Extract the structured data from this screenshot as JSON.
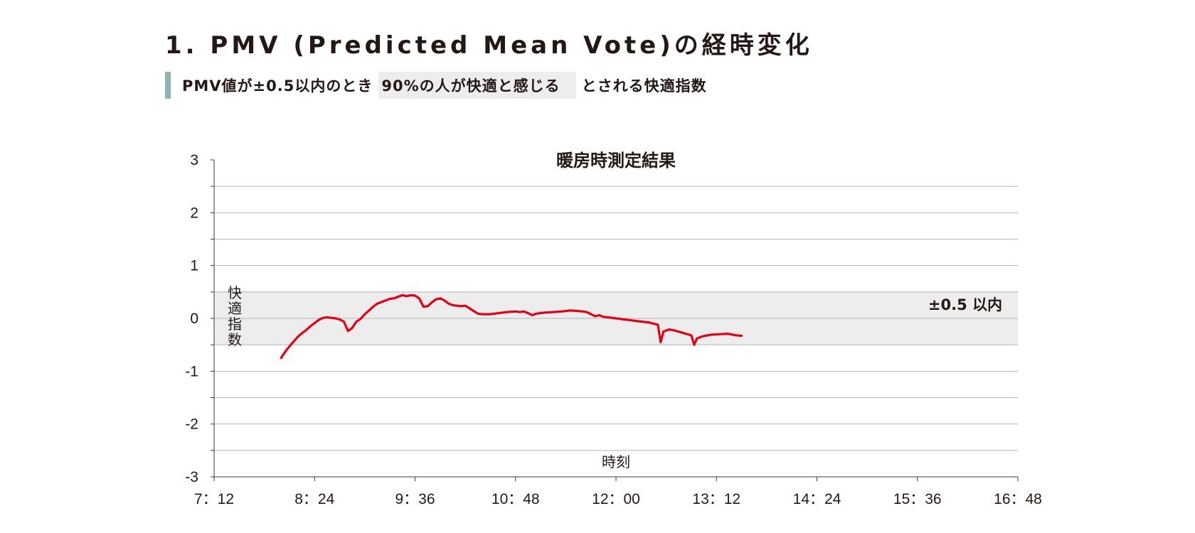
{
  "header": {
    "title": "1. PMV (Predicted Mean Vote)の経時変化",
    "subtitle_before": "PMV値が±0.5以内のとき",
    "subtitle_highlight": "90%の人が快適と感じる",
    "subtitle_after": "とされる快適指数",
    "accent_color": "#8fb5ad"
  },
  "chart_data": {
    "type": "line",
    "title": "暖房時測定結果",
    "xlabel": "時刻",
    "ylabel": "快適指数",
    "x_unit": "minutes since midnight",
    "xlim": [
      432,
      1008
    ],
    "ylim": [
      -3,
      3
    ],
    "x_ticks": [
      {
        "value": 432,
        "label": "7：12"
      },
      {
        "value": 504,
        "label": "8：24"
      },
      {
        "value": 576,
        "label": "9：36"
      },
      {
        "value": 648,
        "label": "10：48"
      },
      {
        "value": 720,
        "label": "12：00"
      },
      {
        "value": 792,
        "label": "13：12"
      },
      {
        "value": 864,
        "label": "14：24"
      },
      {
        "value": 936,
        "label": "15：36"
      },
      {
        "value": 1008,
        "label": "16：48"
      }
    ],
    "y_ticks": [
      3,
      2,
      1,
      0,
      -1,
      -2,
      -3
    ],
    "grid": true,
    "band": {
      "y_min": -0.5,
      "y_max": 0.5,
      "label": "±0.5 以内",
      "color": "#ededee"
    },
    "series": [
      {
        "color": "#e60012",
        "points": [
          [
            480,
            -0.75
          ],
          [
            483,
            -0.63
          ],
          [
            486,
            -0.53
          ],
          [
            489,
            -0.44
          ],
          [
            492,
            -0.35
          ],
          [
            495,
            -0.28
          ],
          [
            498,
            -0.22
          ],
          [
            501,
            -0.15
          ],
          [
            504,
            -0.09
          ],
          [
            507,
            -0.03
          ],
          [
            510,
            0.01
          ],
          [
            513,
            0.02
          ],
          [
            516,
            0.01
          ],
          [
            519,
            0.0
          ],
          [
            522,
            -0.02
          ],
          [
            525,
            -0.06
          ],
          [
            528,
            -0.24
          ],
          [
            531,
            -0.18
          ],
          [
            534,
            -0.06
          ],
          [
            537,
            -0.01
          ],
          [
            540,
            0.08
          ],
          [
            543,
            0.15
          ],
          [
            546,
            0.22
          ],
          [
            549,
            0.28
          ],
          [
            552,
            0.31
          ],
          [
            555,
            0.34
          ],
          [
            558,
            0.37
          ],
          [
            561,
            0.38
          ],
          [
            564,
            0.41
          ],
          [
            567,
            0.44
          ],
          [
            570,
            0.42
          ],
          [
            573,
            0.44
          ],
          [
            576,
            0.43
          ],
          [
            579,
            0.38
          ],
          [
            582,
            0.22
          ],
          [
            585,
            0.23
          ],
          [
            588,
            0.3
          ],
          [
            591,
            0.36
          ],
          [
            594,
            0.38
          ],
          [
            597,
            0.34
          ],
          [
            600,
            0.28
          ],
          [
            603,
            0.25
          ],
          [
            606,
            0.24
          ],
          [
            609,
            0.23
          ],
          [
            612,
            0.24
          ],
          [
            615,
            0.19
          ],
          [
            618,
            0.14
          ],
          [
            621,
            0.09
          ],
          [
            624,
            0.08
          ],
          [
            630,
            0.08
          ],
          [
            636,
            0.1
          ],
          [
            642,
            0.12
          ],
          [
            648,
            0.13
          ],
          [
            651,
            0.12
          ],
          [
            654,
            0.13
          ],
          [
            657,
            0.1
          ],
          [
            660,
            0.06
          ],
          [
            663,
            0.09
          ],
          [
            669,
            0.11
          ],
          [
            675,
            0.12
          ],
          [
            681,
            0.13
          ],
          [
            687,
            0.15
          ],
          [
            693,
            0.14
          ],
          [
            699,
            0.12
          ],
          [
            702,
            0.08
          ],
          [
            705,
            0.04
          ],
          [
            708,
            0.06
          ],
          [
            711,
            0.03
          ],
          [
            714,
            0.02
          ],
          [
            720,
            0.0
          ],
          [
            726,
            -0.02
          ],
          [
            732,
            -0.04
          ],
          [
            738,
            -0.06
          ],
          [
            744,
            -0.08
          ],
          [
            750,
            -0.12
          ],
          [
            752,
            -0.45
          ],
          [
            754,
            -0.25
          ],
          [
            758,
            -0.21
          ],
          [
            762,
            -0.23
          ],
          [
            766,
            -0.26
          ],
          [
            770,
            -0.29
          ],
          [
            774,
            -0.32
          ],
          [
            776,
            -0.5
          ],
          [
            778,
            -0.38
          ],
          [
            782,
            -0.34
          ],
          [
            788,
            -0.31
          ],
          [
            794,
            -0.3
          ],
          [
            800,
            -0.29
          ],
          [
            806,
            -0.32
          ],
          [
            810,
            -0.33
          ]
        ]
      }
    ]
  }
}
